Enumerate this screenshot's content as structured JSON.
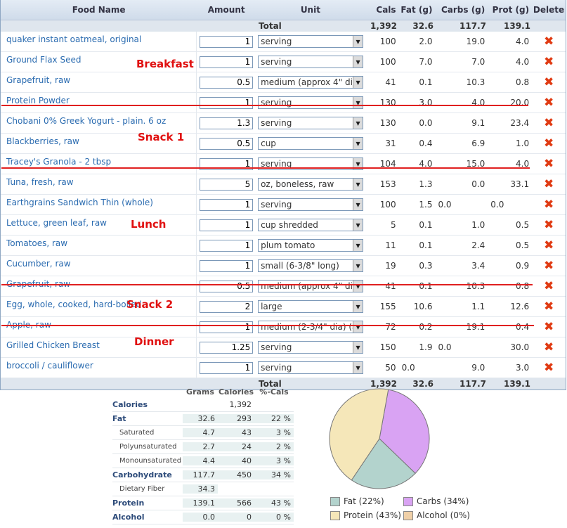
{
  "diary": {
    "headers": {
      "name": "Food Name",
      "amount": "Amount",
      "unit": "Unit",
      "cals": "Cals",
      "fat": "Fat (g)",
      "carbs": "Carbs (g)",
      "prot": "Prot (g)",
      "del": "Delete"
    },
    "totals": {
      "label": "Total",
      "cals": "1,392",
      "fat": "32.6",
      "carbs": "117.7",
      "prot": "139.1"
    },
    "rows": [
      {
        "name": "quaker instant oatmeal, original",
        "amount": "1",
        "unit": "serving",
        "cals": "100",
        "fat": "2.0",
        "carbs": "19.0",
        "prot": "4.0"
      },
      {
        "name": "Ground Flax Seed",
        "amount": "1",
        "unit": "serving",
        "cals": "100",
        "fat": "7.0",
        "carbs": "7.0",
        "prot": "4.0"
      },
      {
        "name": "Grapefruit, raw",
        "amount": "0.5",
        "unit": "medium (approx 4\" dia",
        "cals": "41",
        "fat": "0.1",
        "carbs": "10.3",
        "prot": "0.8"
      },
      {
        "name": "Protein Powder",
        "amount": "1",
        "unit": "serving",
        "cals": "130",
        "fat": "3.0",
        "carbs": "4.0",
        "prot": "20.0"
      },
      {
        "name": "Chobani 0% Greek Yogurt - plain. 6 oz",
        "amount": "1.3",
        "unit": "serving",
        "cals": "130",
        "fat": "0.0",
        "carbs": "9.1",
        "prot": "23.4"
      },
      {
        "name": "Blackberries, raw",
        "amount": "0.5",
        "unit": "cup",
        "cals": "31",
        "fat": "0.4",
        "carbs": "6.9",
        "prot": "1.0"
      },
      {
        "name": "Tracey's Granola - 2 tbsp",
        "amount": "1",
        "unit": "serving",
        "cals": "104",
        "fat": "4.0",
        "carbs": "15.0",
        "prot": "4.0"
      },
      {
        "name": "Tuna, fresh, raw",
        "amount": "5",
        "unit": "oz, boneless, raw",
        "cals": "153",
        "fat": "1.3",
        "carbs": "0.0",
        "prot": "33.1"
      },
      {
        "name": "Earthgrains Sandwich Thin (whole)",
        "amount": "1",
        "unit": "serving",
        "cals": "100",
        "fat": "1.5",
        "carbs": "0.0",
        "prot": "0.0",
        "left_aligned": true
      },
      {
        "name": "Lettuce, green leaf, raw",
        "amount": "1",
        "unit": "cup shredded",
        "cals": "5",
        "fat": "0.1",
        "carbs": "1.0",
        "prot": "0.5"
      },
      {
        "name": "Tomatoes, raw",
        "amount": "1",
        "unit": "plum tomato",
        "cals": "11",
        "fat": "0.1",
        "carbs": "2.4",
        "prot": "0.5"
      },
      {
        "name": "Cucumber, raw",
        "amount": "1",
        "unit": "small (6-3/8\" long)",
        "cals": "19",
        "fat": "0.3",
        "carbs": "3.4",
        "prot": "0.9"
      },
      {
        "name": "Grapefruit, raw",
        "amount": "0.5",
        "unit": "medium (approx 4\" dia",
        "cals": "41",
        "fat": "0.1",
        "carbs": "10.3",
        "prot": "0.8"
      },
      {
        "name": "Egg, whole, cooked, hard-boiled",
        "amount": "2",
        "unit": "large",
        "cals": "155",
        "fat": "10.6",
        "carbs": "1.1",
        "prot": "12.6"
      },
      {
        "name": "Apple, raw",
        "amount": "1",
        "unit": "medium (2-3/4\" dia) (a",
        "cals": "72",
        "fat": "0.2",
        "carbs": "19.1",
        "prot": "0.4"
      },
      {
        "name": "Grilled Chicken Breast",
        "amount": "1.25",
        "unit": "serving",
        "cals": "150",
        "fat": "1.9",
        "carbs": "0.0",
        "prot": "30.0",
        "left_aligned": true
      },
      {
        "name": "broccoli / cauliflower",
        "amount": "1",
        "unit": "serving",
        "cals": "50",
        "fat": "0.0",
        "carbs": "9.0",
        "prot": "3.0",
        "left_aligned": true
      }
    ],
    "delete_glyph": "✖",
    "dropdown_glyph": "▼"
  },
  "meals": {
    "breakfast": "Breakfast",
    "snack1": "Snack 1",
    "lunch": "Lunch",
    "snack2": "Snack 2",
    "dinner": "Dinner",
    "color": "#e01010"
  },
  "summary": {
    "headers": {
      "grams": "Grams",
      "calories": "Calories",
      "pct": "%-Cals"
    },
    "rows": [
      {
        "label": "Calories",
        "grams": "",
        "cals": "1,392",
        "pct": "",
        "main": true
      },
      {
        "label": "Fat",
        "grams": "32.6",
        "cals": "293",
        "pct": "22 %",
        "main": true
      },
      {
        "label": "Saturated",
        "grams": "4.7",
        "cals": "43",
        "pct": "3 %",
        "main": false
      },
      {
        "label": "Polyunsaturated",
        "grams": "2.7",
        "cals": "24",
        "pct": "2 %",
        "main": false
      },
      {
        "label": "Monounsaturated",
        "grams": "4.4",
        "cals": "40",
        "pct": "3 %",
        "main": false
      },
      {
        "label": "Carbohydrate",
        "grams": "117.7",
        "cals": "450",
        "pct": "34 %",
        "main": true
      },
      {
        "label": "Dietary Fiber",
        "grams": "34.3",
        "cals": "",
        "pct": "",
        "main": false
      },
      {
        "label": "Protein",
        "grams": "139.1",
        "cals": "566",
        "pct": "43 %",
        "main": true
      },
      {
        "label": "Alcohol",
        "grams": "0.0",
        "cals": "0",
        "pct": "0 %",
        "main": true
      }
    ]
  },
  "chart_data": {
    "type": "pie",
    "slices": [
      {
        "name": "Fat",
        "label": "Fat (22%)",
        "value": 22,
        "color": "#b3d3cd"
      },
      {
        "name": "Carbs",
        "label": "Carbs (34%)",
        "value": 34,
        "color": "#d9a3f3"
      },
      {
        "name": "Protein",
        "label": "Protein (43%)",
        "value": 43,
        "color": "#f5e7b9"
      },
      {
        "name": "Alcohol",
        "label": "Alcohol (0%)",
        "value": 0,
        "color": "#f0d0a8"
      }
    ],
    "legend_position": "bottom"
  }
}
